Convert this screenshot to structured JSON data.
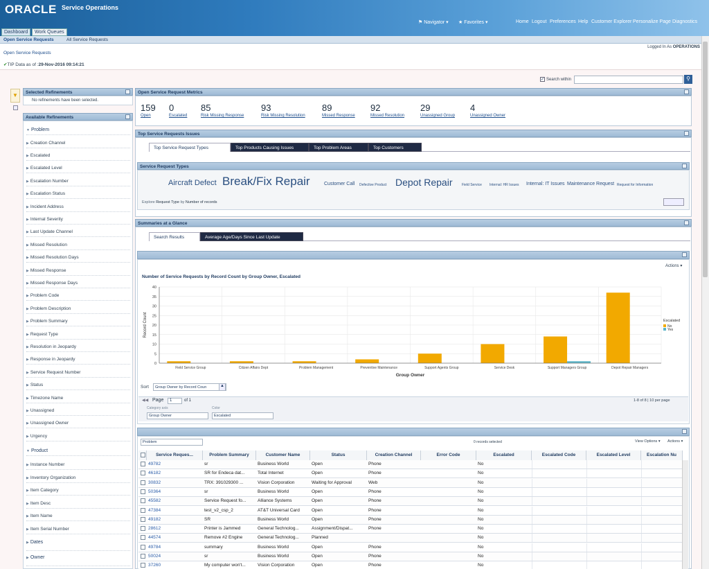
{
  "brand": {
    "logo": "ORACLE",
    "app": "Service Operations"
  },
  "global": {
    "navigator": "Navigator",
    "favorites": "Favorites",
    "links": [
      "Home",
      "Logout",
      "Preferences",
      "Help",
      "Customer Explorer",
      "Personalize Page",
      "Diagnostics"
    ]
  },
  "tabs": [
    "Dashboard",
    "Work Queues"
  ],
  "subnav": [
    "Open Service Requests",
    "All Service Requests"
  ],
  "breadcrumb": "Open Service Requests",
  "logged_in": {
    "prefix": "Logged In As",
    "user": "OPERATIONS"
  },
  "tip": {
    "text": "TIP Data as of",
    "date": "29-Nov-2016 09:14:21"
  },
  "search": {
    "label": "Search within",
    "value": ""
  },
  "refinements": {
    "selected_title": "Selected Refinements",
    "none_text": "No refinements have been selected.",
    "available_title": "Available Refinements",
    "problem_group": "Problem",
    "problem_items": [
      "Creation Channel",
      "Escalated",
      "Escalated Level",
      "Escalation Number",
      "Escalation Status",
      "Incident Address",
      "Internal Severity",
      "Last Update Channel",
      "Missed Resolution",
      "Missed Resolution Days",
      "Missed Response",
      "Missed Response Days",
      "Problem Code",
      "Problem Description",
      "Problem Summary",
      "Request Type",
      "Resolution in Jeopardy",
      "Response in Jeopardy",
      "Service Request Number",
      "Status",
      "Timezone Name",
      "Unassigned",
      "Unassigned Owner",
      "Urgency"
    ],
    "product_group": "Product",
    "product_items": [
      "Instance Number",
      "Inventory Organization",
      "Item Category",
      "Item Desc",
      "Item Name",
      "Item Serial Number"
    ],
    "dates_group": "Dates",
    "owner_group": "Owner"
  },
  "metrics": {
    "title": "Open Service Request Metrics",
    "items": [
      {
        "value": "159",
        "label": "Open"
      },
      {
        "value": "0",
        "label": "Escalated"
      },
      {
        "value": "85",
        "label": "Risk Missing Response"
      },
      {
        "value": "93",
        "label": "Risk Missing Resolution"
      },
      {
        "value": "89",
        "label": "Missed Response"
      },
      {
        "value": "92",
        "label": "Missed Resolution"
      },
      {
        "value": "29",
        "label": "Unassigned Group"
      },
      {
        "value": "4",
        "label": "Unassigned Owner"
      }
    ]
  },
  "issues": {
    "title": "Top Service Requests Issues",
    "tabs": [
      "Top Service Request Types",
      "Top Products Causing Issues",
      "Top Problem Areas",
      "Top Customers"
    ]
  },
  "types": {
    "title": "Service Request Types",
    "tags": [
      "Aircraft Defect",
      "Break/Fix Repair",
      "Customer Call",
      "Defective Product",
      "Depot Repair",
      "Field Service",
      "Internal: HR Issues",
      "Internal: IT Issues",
      "Maintenance Request",
      "Request for Information"
    ],
    "explore": "Explore",
    "explore_val": "Request Type",
    "by": "by",
    "by_val": "Number of records"
  },
  "summaries": {
    "title": "Summaries at a Glance",
    "tabs": [
      "Search Results",
      "Average Age/Days Since Last Update"
    ],
    "actions": "Actions"
  },
  "chart_data": {
    "type": "bar",
    "title": "Number of Service Requests by Record Count by Group Owner, Escalated",
    "xlabel": "Group Owner",
    "ylabel": "Record Count",
    "ylim": [
      0,
      40
    ],
    "yticks": [
      "0",
      "5",
      "10",
      "15",
      "20",
      "25",
      "30",
      "35",
      "40"
    ],
    "categories": [
      "Field Service Group",
      "Citizen Affairs Dept",
      "Problem Management",
      "Preventive Maintenance",
      "Support Agents Group",
      "Service Desk",
      "Support Managers Group",
      "Depot Repair Managers"
    ],
    "series": [
      {
        "name": "No",
        "color": "#f2a900",
        "values": [
          1,
          1,
          1,
          2,
          5,
          10,
          14,
          37
        ]
      },
      {
        "name": "Yes",
        "color": "#5bb5c8",
        "values": [
          0,
          0,
          0,
          0,
          0,
          0,
          1,
          0
        ]
      }
    ],
    "legend_title": "Escalated",
    "legend": "right",
    "grid": true
  },
  "chart_controls": {
    "sort_label": "Sort",
    "sort_value": "Group Owner by Record Coun",
    "page_label": "Page",
    "page_value": "1",
    "of": "of 1",
    "range": "1-8 of 8",
    "per_page": "10 per page",
    "cat_axis_label": "Category axis",
    "cat_axis_value": "Group Owner",
    "color_label": "Color",
    "color_value": "Escalated"
  },
  "results": {
    "filter": "Problem",
    "selected": "0 records selected",
    "view_options": "View Options",
    "actions": "Actions",
    "columns": [
      "Service Reques...",
      "Problem Summary",
      "Customer Name",
      "Status",
      "Creation Channel",
      "Error Code",
      "Escalated",
      "Escalated Code",
      "Escalated Level",
      "Escalation Nu"
    ],
    "rows": [
      [
        "49782",
        "sr",
        "Business World",
        "Open",
        "Phone",
        "",
        "No"
      ],
      [
        "46182",
        "SR for Endeca dat...",
        "Total Internet",
        "Open",
        "Phone",
        "",
        "No"
      ],
      [
        "30832",
        "TRX: 391029300 ...",
        "Vision Corporation",
        "Waiting for Approval",
        "Web",
        "",
        "No"
      ],
      [
        "50364",
        "sr",
        "Business World",
        "Open",
        "Phone",
        "",
        "No"
      ],
      [
        "45582",
        "Service Request fo...",
        "Alliance Systems",
        "Open",
        "Phone",
        "",
        "No"
      ],
      [
        "47384",
        "test_v2_csp_2",
        "AT&T Universal Card",
        "Open",
        "Phone",
        "",
        "No"
      ],
      [
        "49182",
        "SR",
        "Business World",
        "Open",
        "Phone",
        "",
        "No"
      ],
      [
        "28612",
        "Printer is Jammed",
        "General Technolog...",
        "Assignment/Dispat...",
        "Phone",
        "",
        "No"
      ],
      [
        "44574",
        "Remove #2 Engine",
        "General Technolog...",
        "Planned",
        "",
        "",
        "No"
      ],
      [
        "49784",
        "summary",
        "Business World",
        "Open",
        "Phone",
        "",
        "No"
      ],
      [
        "50024",
        "sr",
        "Business World",
        "Open",
        "Phone",
        "",
        "No"
      ],
      [
        "37260",
        "My computer won't...",
        "Vision Corporation",
        "Open",
        "Phone",
        "",
        "No"
      ]
    ]
  }
}
